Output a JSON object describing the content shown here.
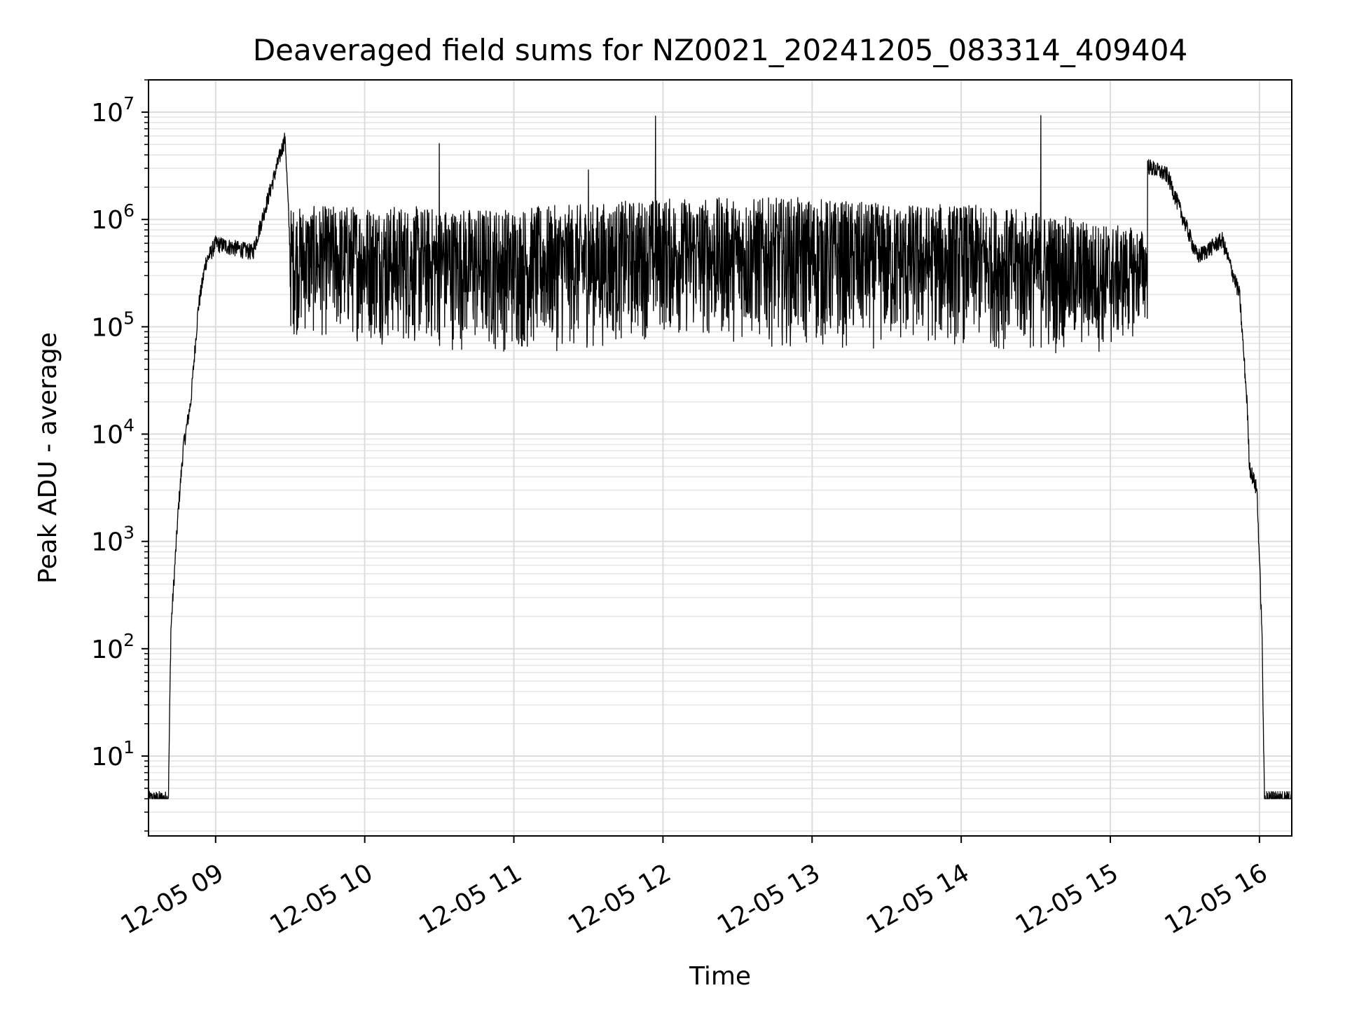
{
  "chart_data": {
    "type": "line",
    "title": "Deaveraged field sums for NZ0021_20241205_083314_409404",
    "xlabel": "Time",
    "ylabel": "Peak ADU - average",
    "x_axis": {
      "kind": "datetime",
      "range": [
        "2024-12-05 08:33",
        "2024-12-05 16:13"
      ],
      "tick_values": [
        "2024-12-05 09:00",
        "2024-12-05 10:00",
        "2024-12-05 11:00",
        "2024-12-05 12:00",
        "2024-12-05 13:00",
        "2024-12-05 14:00",
        "2024-12-05 15:00",
        "2024-12-05 16:00"
      ],
      "tick_labels": [
        "12-05 09",
        "12-05 10",
        "12-05 11",
        "12-05 12",
        "12-05 13",
        "12-05 14",
        "12-05 15",
        "12-05 16"
      ],
      "tick_label_rotation_deg": 30
    },
    "y_axis": {
      "scale": "log",
      "range": [
        1.8,
        20000000
      ],
      "tick_values": [
        10,
        100,
        1000,
        10000,
        100000,
        1000000,
        10000000
      ],
      "tick_labels": [
        {
          "base": "10",
          "exp": "1"
        },
        {
          "base": "10",
          "exp": "2"
        },
        {
          "base": "10",
          "exp": "3"
        },
        {
          "base": "10",
          "exp": "4"
        },
        {
          "base": "10",
          "exp": "5"
        },
        {
          "base": "10",
          "exp": "6"
        },
        {
          "base": "10",
          "exp": "7"
        }
      ]
    },
    "grid": true,
    "legend": "none",
    "series": [
      {
        "color": "#000000",
        "points": [
          [
            "2024-12-05 08:33",
            4
          ],
          [
            "2024-12-05 08:41",
            4
          ],
          [
            "2024-12-05 08:42",
            150
          ],
          [
            "2024-12-05 08:45",
            2000
          ],
          [
            "2024-12-05 08:47",
            7500
          ],
          [
            "2024-12-05 08:50",
            20000
          ],
          [
            "2024-12-05 08:53",
            150000
          ],
          [
            "2024-12-05 08:56",
            400000
          ],
          [
            "2024-12-05 09:00",
            600000
          ],
          [
            "2024-12-05 09:15",
            500000
          ],
          [
            "2024-12-05 09:28",
            5900000
          ],
          [
            "2024-12-05 09:30",
            500000
          ],
          [
            "2024-12-05 10:30",
            5100000
          ],
          [
            "2024-12-05 11:30",
            2900000
          ],
          [
            "2024-12-05 11:57",
            9200000
          ],
          [
            "2024-12-05 12:30",
            1000000
          ],
          [
            "2024-12-05 13:00",
            800000
          ],
          [
            "2024-12-05 14:32",
            9300000
          ],
          [
            "2024-12-05 15:23",
            2600000
          ],
          [
            "2024-12-05 15:35",
            450000
          ],
          [
            "2024-12-05 15:45",
            650000
          ],
          [
            "2024-12-05 15:52",
            200000
          ],
          [
            "2024-12-05 15:55",
            20000
          ],
          [
            "2024-12-05 15:56",
            5000
          ],
          [
            "2024-12-05 15:59",
            3000
          ],
          [
            "2024-12-05 16:01",
            150
          ],
          [
            "2024-12-05 16:02",
            4
          ],
          [
            "2024-12-05 16:13",
            4
          ]
        ],
        "envelope": {
          "description_of_band": "dense noisy band; rough per-hour lower and upper extents of the trace",
          "hours": [
            "09:30",
            "10:00",
            "10:30",
            "11:00",
            "11:30",
            "12:00",
            "12:30",
            "13:00",
            "13:30",
            "14:00",
            "14:30",
            "15:00",
            "15:15"
          ],
          "lower": [
            80000,
            70000,
            60000,
            55000,
            60000,
            80000,
            70000,
            60000,
            60000,
            65000,
            55000,
            55000,
            100000
          ],
          "upper": [
            1300000,
            1400000,
            1300000,
            1300000,
            1400000,
            1600000,
            1600000,
            1600000,
            1400000,
            1400000,
            1200000,
            900000,
            800000
          ]
        }
      }
    ]
  }
}
